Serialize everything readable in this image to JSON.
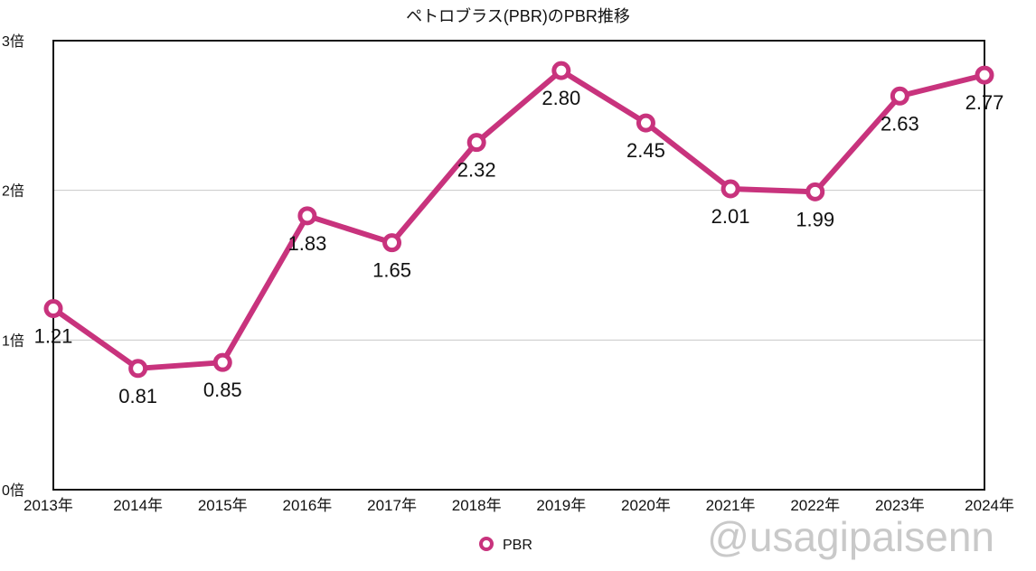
{
  "chart_data": {
    "type": "line",
    "title": "ペトロブラス(PBR)のPBR推移",
    "xlabel": "",
    "ylabel": "",
    "categories": [
      "2013年",
      "2014年",
      "2015年",
      "2016年",
      "2017年",
      "2018年",
      "2019年",
      "2020年",
      "2021年",
      "2022年",
      "2023年",
      "2024年"
    ],
    "series": [
      {
        "name": "PBR",
        "color": "#c8337d",
        "values": [
          1.21,
          0.81,
          0.85,
          1.83,
          1.65,
          2.32,
          2.8,
          2.45,
          2.01,
          1.99,
          2.63,
          2.77
        ],
        "labels": [
          "1.21",
          "0.81",
          "0.85",
          "1.83",
          "1.65",
          "2.32",
          "2.80",
          "2.45",
          "2.01",
          "1.99",
          "2.63",
          "2.77"
        ]
      }
    ],
    "ylim": [
      0,
      3
    ],
    "yticks": [
      {
        "value": 0,
        "label": "0倍"
      },
      {
        "value": 1,
        "label": "1倍"
      },
      {
        "value": 2,
        "label": "2倍"
      },
      {
        "value": 3,
        "label": "3倍"
      }
    ],
    "grid": true,
    "legend_position": "bottom"
  },
  "watermark": "@usagipaisenn"
}
